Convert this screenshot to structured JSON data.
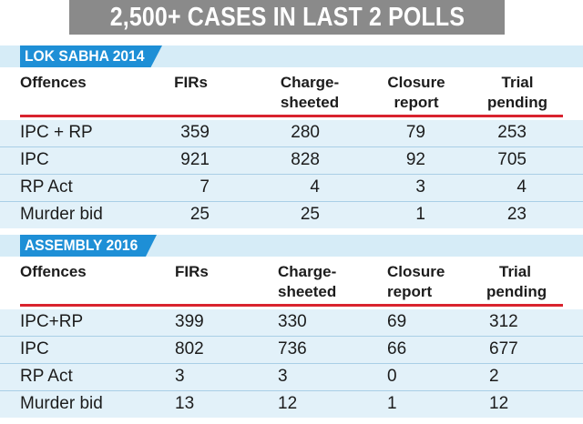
{
  "title": "2,500+ CASES IN LAST 2 POLLS",
  "columns": [
    "Offences",
    "FIRs",
    "Charge-",
    "sheeted",
    "Closure",
    "report",
    "Trial",
    "pending"
  ],
  "sections": [
    {
      "header": "LOK SABHA 2014",
      "rows": [
        {
          "offence": "IPC + RP",
          "firs": "359",
          "chargesheeted": "280",
          "closure": "79",
          "trial": "253"
        },
        {
          "offence": "IPC",
          "firs": "921",
          "chargesheeted": "828",
          "closure": "92",
          "trial": "705"
        },
        {
          "offence": "RP Act",
          "firs": "7",
          "chargesheeted": "4",
          "closure": "3",
          "trial": "4"
        },
        {
          "offence": "Murder bid",
          "firs": "25",
          "chargesheeted": "25",
          "closure": "1",
          "trial": "23"
        }
      ]
    },
    {
      "header": "ASSEMBLY 2016",
      "rows": [
        {
          "offence": "IPC+RP",
          "firs": "399",
          "chargesheeted": "330",
          "closure": "69",
          "trial": "312"
        },
        {
          "offence": "IPC",
          "firs": "802",
          "chargesheeted": "736",
          "closure": "66",
          "trial": "677"
        },
        {
          "offence": "RP Act",
          "firs": "3",
          "chargesheeted": "3",
          "closure": "0",
          "trial": "2"
        },
        {
          "offence": "Murder bid",
          "firs": "13",
          "chargesheeted": "12",
          "closure": "1",
          "trial": "12"
        }
      ]
    }
  ],
  "colors": {
    "banner": "#8a8a8a",
    "section_header": "#1e8fd6",
    "row_bg": "#e2f1f9",
    "rule": "#d9232e"
  }
}
